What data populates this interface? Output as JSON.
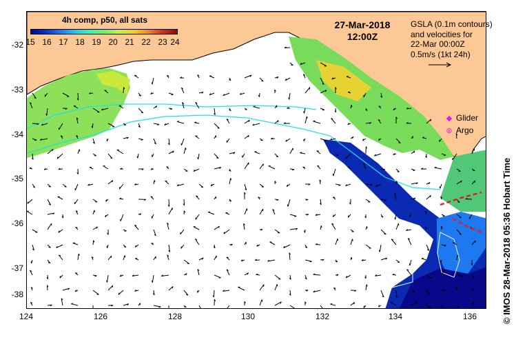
{
  "colorbar": {
    "title": "4h comp, p50, all sats",
    "ticks": [
      "15",
      "16",
      "17",
      "18",
      "19",
      "20",
      "21",
      "22",
      "23",
      "24"
    ],
    "min": 15,
    "max": 24,
    "colors": [
      "#08088a",
      "#0a30d0",
      "#1e78f0",
      "#1ec8f0",
      "#3cf0b4",
      "#78f05a",
      "#c8f03c",
      "#f0d21e",
      "#f08c1e",
      "#d23214",
      "#8c0a0a"
    ]
  },
  "date": {
    "day": "27-Mar-2018",
    "time": "12:00Z"
  },
  "gsla_note": {
    "line1": "GSLA (0.1m contours)",
    "line2": "and velocities for",
    "line3": "22-Mar 00:00Z",
    "line4": "0.5m/s (1kt 24h)"
  },
  "legend": {
    "glider": "Glider",
    "argo": "Argo"
  },
  "credit": "© IMOS 28-Mar-2018 05:36 Hobart Time",
  "axes": {
    "x_ticks": [
      "124",
      "126",
      "128",
      "130",
      "132",
      "134",
      "136"
    ],
    "x_values": [
      124,
      126,
      128,
      130,
      132,
      134,
      136
    ],
    "y_ticks": [
      "-32",
      "-33",
      "-34",
      "-35",
      "-36",
      "-37",
      "-38"
    ],
    "y_values": [
      -32,
      -33,
      -34,
      -35,
      -36,
      -37,
      -38
    ],
    "lon_range": [
      124,
      136.5
    ],
    "lat_range": [
      -31.4,
      -38.2
    ]
  },
  "colors": {
    "land": "#fcc896",
    "coast": "#000000",
    "contour": "#20e0e8",
    "arrow": "#000000",
    "marker": "#e020e0"
  }
}
